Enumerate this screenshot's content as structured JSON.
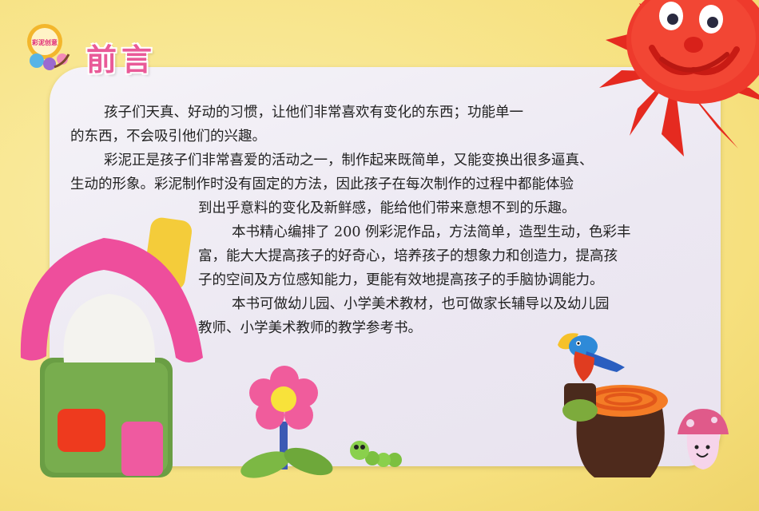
{
  "header": {
    "title": "前言",
    "logo_text": "彩泥创意"
  },
  "body": {
    "lines": [
      "孩子们天真、好动的习惯，让他们非常喜欢有变化的东西；功能单一",
      "的东西，不会吸引他们的兴趣。",
      "彩泥正是孩子们非常喜爱的活动之一，制作起来既简单，又能变换出很多逼真、",
      "生动的形象。彩泥制作时没有固定的方法，因此孩子在每次制作的过程中都能体验",
      "到出乎意料的变化及新鲜感，能给他们带来意想不到的乐趣。",
      "本书精心编排了 200 例彩泥作品，方法简单，造型生动，色彩丰",
      "富，能大大提高孩子的好奇心，培养孩子的想象力和创造力，提高孩",
      "子的空间及方位感知能力，更能有效地提高孩子的手脑协调能力。",
      "本书可做幼儿园、小学美术教材，也可做家长辅导以及幼儿园",
      "教师、小学美术教师的教学参考书。"
    ]
  },
  "illustrations": {
    "sun": "clay-sun-illustration",
    "house": "clay-house-illustration",
    "flower": "clay-flower-illustration",
    "caterpillar": "clay-caterpillar-illustration",
    "parrot": "clay-parrot-illustration",
    "stump": "clay-stump-illustration",
    "mushroom": "clay-mushroom-illustration"
  },
  "colors": {
    "background": "#f8e58c",
    "panel": "#f1eef5",
    "title": "#e95a98",
    "sun": "#e8261f",
    "house_roof": "#ee4e9c",
    "house_wall": "#6a9f46",
    "flower": "#f05c9c"
  }
}
